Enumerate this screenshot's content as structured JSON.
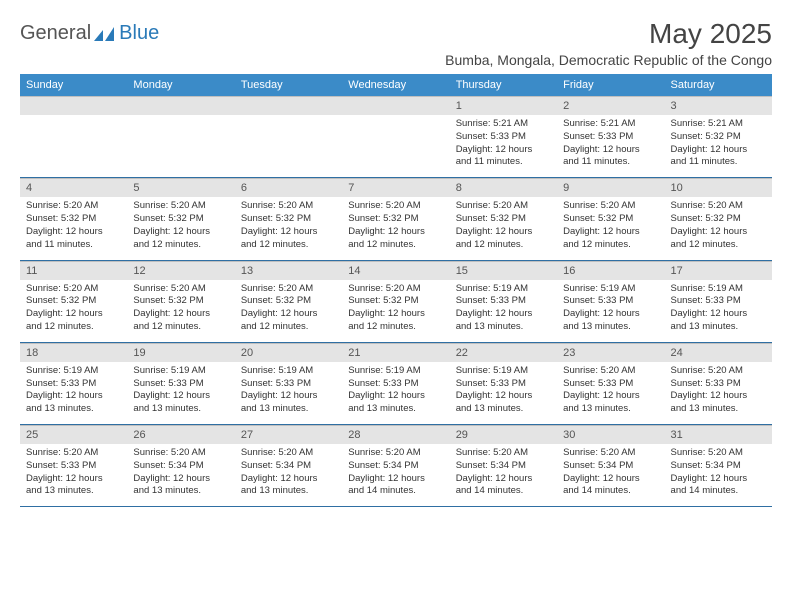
{
  "logo": {
    "general": "General",
    "blue": "Blue"
  },
  "title": "May 2025",
  "subtitle": "Bumba, Mongala, Democratic Republic of the Congo",
  "colors": {
    "header_bg": "#3b8bc8",
    "header_fg": "#ffffff",
    "row_divider": "#2f6fa3",
    "daynum_bg": "#e4e4e4",
    "text": "#333333",
    "logo_blue": "#2a7ab8"
  },
  "dayHeaders": [
    "Sunday",
    "Monday",
    "Tuesday",
    "Wednesday",
    "Thursday",
    "Friday",
    "Saturday"
  ],
  "weeks": [
    [
      null,
      null,
      null,
      null,
      {
        "num": "1",
        "sunrise": "Sunrise: 5:21 AM",
        "sunset": "Sunset: 5:33 PM",
        "d1": "Daylight: 12 hours",
        "d2": "and 11 minutes."
      },
      {
        "num": "2",
        "sunrise": "Sunrise: 5:21 AM",
        "sunset": "Sunset: 5:33 PM",
        "d1": "Daylight: 12 hours",
        "d2": "and 11 minutes."
      },
      {
        "num": "3",
        "sunrise": "Sunrise: 5:21 AM",
        "sunset": "Sunset: 5:32 PM",
        "d1": "Daylight: 12 hours",
        "d2": "and 11 minutes."
      }
    ],
    [
      {
        "num": "4",
        "sunrise": "Sunrise: 5:20 AM",
        "sunset": "Sunset: 5:32 PM",
        "d1": "Daylight: 12 hours",
        "d2": "and 11 minutes."
      },
      {
        "num": "5",
        "sunrise": "Sunrise: 5:20 AM",
        "sunset": "Sunset: 5:32 PM",
        "d1": "Daylight: 12 hours",
        "d2": "and 12 minutes."
      },
      {
        "num": "6",
        "sunrise": "Sunrise: 5:20 AM",
        "sunset": "Sunset: 5:32 PM",
        "d1": "Daylight: 12 hours",
        "d2": "and 12 minutes."
      },
      {
        "num": "7",
        "sunrise": "Sunrise: 5:20 AM",
        "sunset": "Sunset: 5:32 PM",
        "d1": "Daylight: 12 hours",
        "d2": "and 12 minutes."
      },
      {
        "num": "8",
        "sunrise": "Sunrise: 5:20 AM",
        "sunset": "Sunset: 5:32 PM",
        "d1": "Daylight: 12 hours",
        "d2": "and 12 minutes."
      },
      {
        "num": "9",
        "sunrise": "Sunrise: 5:20 AM",
        "sunset": "Sunset: 5:32 PM",
        "d1": "Daylight: 12 hours",
        "d2": "and 12 minutes."
      },
      {
        "num": "10",
        "sunrise": "Sunrise: 5:20 AM",
        "sunset": "Sunset: 5:32 PM",
        "d1": "Daylight: 12 hours",
        "d2": "and 12 minutes."
      }
    ],
    [
      {
        "num": "11",
        "sunrise": "Sunrise: 5:20 AM",
        "sunset": "Sunset: 5:32 PM",
        "d1": "Daylight: 12 hours",
        "d2": "and 12 minutes."
      },
      {
        "num": "12",
        "sunrise": "Sunrise: 5:20 AM",
        "sunset": "Sunset: 5:32 PM",
        "d1": "Daylight: 12 hours",
        "d2": "and 12 minutes."
      },
      {
        "num": "13",
        "sunrise": "Sunrise: 5:20 AM",
        "sunset": "Sunset: 5:32 PM",
        "d1": "Daylight: 12 hours",
        "d2": "and 12 minutes."
      },
      {
        "num": "14",
        "sunrise": "Sunrise: 5:20 AM",
        "sunset": "Sunset: 5:32 PM",
        "d1": "Daylight: 12 hours",
        "d2": "and 12 minutes."
      },
      {
        "num": "15",
        "sunrise": "Sunrise: 5:19 AM",
        "sunset": "Sunset: 5:33 PM",
        "d1": "Daylight: 12 hours",
        "d2": "and 13 minutes."
      },
      {
        "num": "16",
        "sunrise": "Sunrise: 5:19 AM",
        "sunset": "Sunset: 5:33 PM",
        "d1": "Daylight: 12 hours",
        "d2": "and 13 minutes."
      },
      {
        "num": "17",
        "sunrise": "Sunrise: 5:19 AM",
        "sunset": "Sunset: 5:33 PM",
        "d1": "Daylight: 12 hours",
        "d2": "and 13 minutes."
      }
    ],
    [
      {
        "num": "18",
        "sunrise": "Sunrise: 5:19 AM",
        "sunset": "Sunset: 5:33 PM",
        "d1": "Daylight: 12 hours",
        "d2": "and 13 minutes."
      },
      {
        "num": "19",
        "sunrise": "Sunrise: 5:19 AM",
        "sunset": "Sunset: 5:33 PM",
        "d1": "Daylight: 12 hours",
        "d2": "and 13 minutes."
      },
      {
        "num": "20",
        "sunrise": "Sunrise: 5:19 AM",
        "sunset": "Sunset: 5:33 PM",
        "d1": "Daylight: 12 hours",
        "d2": "and 13 minutes."
      },
      {
        "num": "21",
        "sunrise": "Sunrise: 5:19 AM",
        "sunset": "Sunset: 5:33 PM",
        "d1": "Daylight: 12 hours",
        "d2": "and 13 minutes."
      },
      {
        "num": "22",
        "sunrise": "Sunrise: 5:19 AM",
        "sunset": "Sunset: 5:33 PM",
        "d1": "Daylight: 12 hours",
        "d2": "and 13 minutes."
      },
      {
        "num": "23",
        "sunrise": "Sunrise: 5:20 AM",
        "sunset": "Sunset: 5:33 PM",
        "d1": "Daylight: 12 hours",
        "d2": "and 13 minutes."
      },
      {
        "num": "24",
        "sunrise": "Sunrise: 5:20 AM",
        "sunset": "Sunset: 5:33 PM",
        "d1": "Daylight: 12 hours",
        "d2": "and 13 minutes."
      }
    ],
    [
      {
        "num": "25",
        "sunrise": "Sunrise: 5:20 AM",
        "sunset": "Sunset: 5:33 PM",
        "d1": "Daylight: 12 hours",
        "d2": "and 13 minutes."
      },
      {
        "num": "26",
        "sunrise": "Sunrise: 5:20 AM",
        "sunset": "Sunset: 5:34 PM",
        "d1": "Daylight: 12 hours",
        "d2": "and 13 minutes."
      },
      {
        "num": "27",
        "sunrise": "Sunrise: 5:20 AM",
        "sunset": "Sunset: 5:34 PM",
        "d1": "Daylight: 12 hours",
        "d2": "and 13 minutes."
      },
      {
        "num": "28",
        "sunrise": "Sunrise: 5:20 AM",
        "sunset": "Sunset: 5:34 PM",
        "d1": "Daylight: 12 hours",
        "d2": "and 14 minutes."
      },
      {
        "num": "29",
        "sunrise": "Sunrise: 5:20 AM",
        "sunset": "Sunset: 5:34 PM",
        "d1": "Daylight: 12 hours",
        "d2": "and 14 minutes."
      },
      {
        "num": "30",
        "sunrise": "Sunrise: 5:20 AM",
        "sunset": "Sunset: 5:34 PM",
        "d1": "Daylight: 12 hours",
        "d2": "and 14 minutes."
      },
      {
        "num": "31",
        "sunrise": "Sunrise: 5:20 AM",
        "sunset": "Sunset: 5:34 PM",
        "d1": "Daylight: 12 hours",
        "d2": "and 14 minutes."
      }
    ]
  ]
}
